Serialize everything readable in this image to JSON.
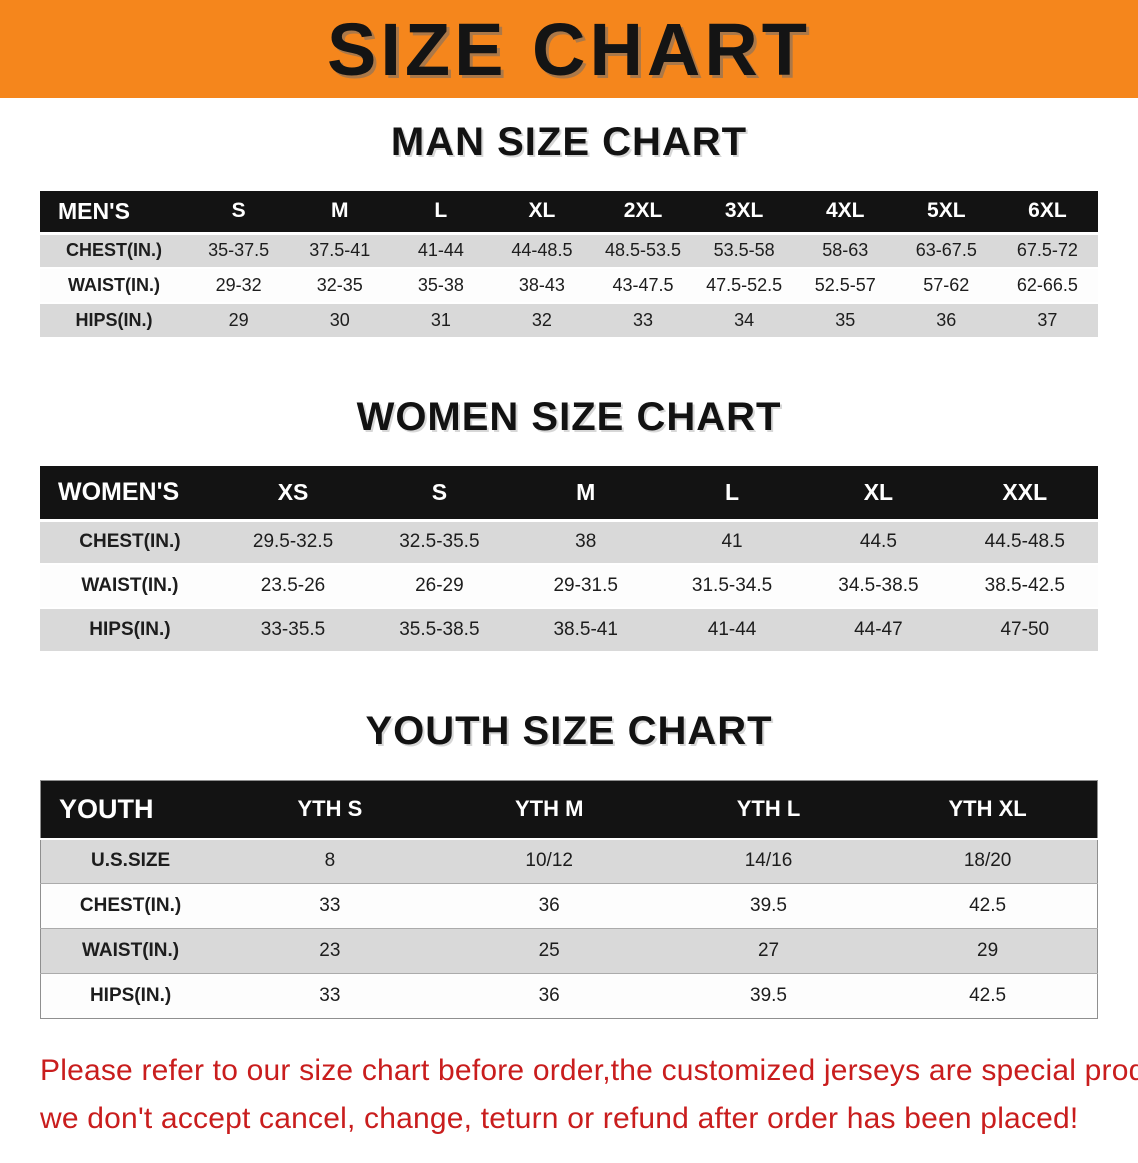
{
  "banner": {
    "title": "SIZE CHART",
    "bg_color": "#f5861c",
    "text_color": "#141414"
  },
  "sections": [
    {
      "id": "men",
      "heading": "MAN SIZE CHART",
      "table": {
        "header": [
          "MEN'S",
          "S",
          "M",
          "L",
          "XL",
          "2XL",
          "3XL",
          "4XL",
          "5XL",
          "6XL"
        ],
        "rows": [
          [
            "CHEST(IN.)",
            "35-37.5",
            "37.5-41",
            "41-44",
            "44-48.5",
            "48.5-53.5",
            "53.5-58",
            "58-63",
            "63-67.5",
            "67.5-72"
          ],
          [
            "WAIST(IN.)",
            "29-32",
            "32-35",
            "35-38",
            "38-43",
            "43-47.5",
            "47.5-52.5",
            "52.5-57",
            "57-62",
            "62-66.5"
          ],
          [
            "HIPS(IN.)",
            "29",
            "30",
            "31",
            "32",
            "33",
            "34",
            "35",
            "36",
            "37"
          ]
        ]
      }
    },
    {
      "id": "women",
      "heading": "WOMEN SIZE CHART",
      "table": {
        "header": [
          "WOMEN'S",
          "XS",
          "S",
          "M",
          "L",
          "XL",
          "XXL"
        ],
        "rows": [
          [
            "CHEST(IN.)",
            "29.5-32.5",
            "32.5-35.5",
            "38",
            "41",
            "44.5",
            "44.5-48.5"
          ],
          [
            "WAIST(IN.)",
            "23.5-26",
            "26-29",
            "29-31.5",
            "31.5-34.5",
            "34.5-38.5",
            "38.5-42.5"
          ],
          [
            "HIPS(IN.)",
            "33-35.5",
            "35.5-38.5",
            "38.5-41",
            "41-44",
            "44-47",
            "47-50"
          ]
        ]
      }
    },
    {
      "id": "youth",
      "heading": "YOUTH SIZE CHART",
      "table": {
        "header": [
          "YOUTH",
          "YTH S",
          "YTH M",
          "YTH L",
          "YTH XL"
        ],
        "rows": [
          [
            "U.S.SIZE",
            "8",
            "10/12",
            "14/16",
            "18/20"
          ],
          [
            "CHEST(IN.)",
            "33",
            "36",
            "39.5",
            "42.5"
          ],
          [
            "WAIST(IN.)",
            "23",
            "25",
            "27",
            "29"
          ],
          [
            "HIPS(IN.)",
            "33",
            "36",
            "39.5",
            "42.5"
          ]
        ]
      }
    }
  ],
  "disclaimer": {
    "color": "#c91d1d",
    "line1": "Please refer to our size chart before order,the customized jerseys are special products,",
    "line2": "we don't accept cancel, change, teturn or refund after order has been placed!"
  }
}
